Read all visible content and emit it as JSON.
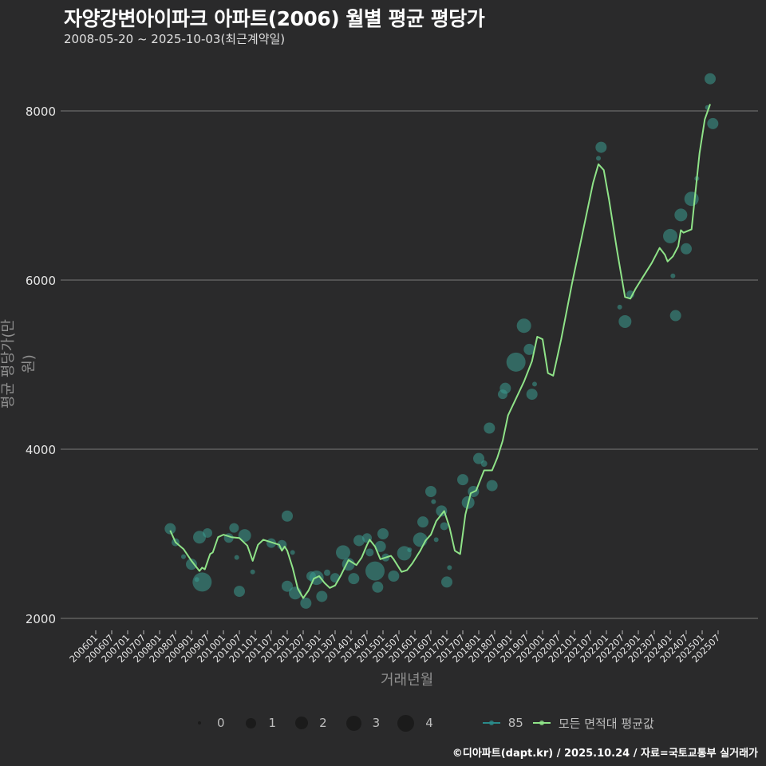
{
  "header": {
    "title": "자양강변아이파크 아파트(2006) 월별 평균 평당가",
    "subtitle": "2008-05-20 ~ 2025-10-03(최근계약일)"
  },
  "axes": {
    "ylabel": "평균 평당가(만 원)",
    "xlabel": "거래년월"
  },
  "legend": {
    "size_items": [
      {
        "label": "0",
        "size": 4
      },
      {
        "label": "1",
        "size": 12
      },
      {
        "label": "2",
        "size": 16
      },
      {
        "label": "3",
        "size": 20
      },
      {
        "label": "4",
        "size": 22
      }
    ],
    "series_items": [
      {
        "label": "85",
        "color": "#2a8a8a"
      },
      {
        "label": "모든 면적대 평균값",
        "color": "#8fe388"
      }
    ]
  },
  "footer": {
    "credit": "©디아파트(dapt.kr) / 2025.10.24 / 자료=국토교통부 실거래가"
  },
  "colors": {
    "background": "#2a2a2b",
    "grid": "#7a7a7a",
    "bubble": "#3a9a90",
    "line": "#8fe388"
  },
  "chart_data": {
    "type": "line",
    "title": "자양강변아이파크 아파트(2006) 월별 평균 평당가",
    "subtitle": "2008-05-20 ~ 2025-10-03(최근계약일)",
    "xlabel": "거래년월",
    "ylabel": "평균 평당가(만 원)",
    "ylim": [
      1900,
      8500
    ],
    "yticks": [
      2000,
      4000,
      6000,
      8000
    ],
    "grid": true,
    "legend_position": "bottom",
    "xticks": [
      "200601",
      "200607",
      "200701",
      "200707",
      "200801",
      "200807",
      "200901",
      "200907",
      "201001",
      "201007",
      "201101",
      "201107",
      "201201",
      "201207",
      "201301",
      "201307",
      "201401",
      "201407",
      "201501",
      "201507",
      "201601",
      "201607",
      "201701",
      "201707",
      "201801",
      "201807",
      "201901",
      "201907",
      "202001",
      "202007",
      "202101",
      "202107",
      "202201",
      "202207",
      "202301",
      "202307",
      "202401",
      "202407",
      "202501",
      "202507"
    ],
    "series": [
      {
        "name": "모든 면적대 평균값",
        "points": [
          [
            "200805",
            3040
          ],
          [
            "200807",
            2900
          ],
          [
            "200810",
            2820
          ],
          [
            "200901",
            2680
          ],
          [
            "200904",
            2560
          ],
          [
            "200905",
            2600
          ],
          [
            "200906",
            2580
          ],
          [
            "200908",
            2760
          ],
          [
            "200909",
            2780
          ],
          [
            "200911",
            2960
          ],
          [
            "201001",
            2990
          ],
          [
            "201004",
            2960
          ],
          [
            "201007",
            2950
          ],
          [
            "201010",
            2860
          ],
          [
            "201012",
            2680
          ],
          [
            "201102",
            2870
          ],
          [
            "201104",
            2930
          ],
          [
            "201107",
            2900
          ],
          [
            "201110",
            2870
          ],
          [
            "201111",
            2800
          ],
          [
            "201112",
            2850
          ],
          [
            "201201",
            2800
          ],
          [
            "201203",
            2600
          ],
          [
            "201205",
            2350
          ],
          [
            "201207",
            2240
          ],
          [
            "201209",
            2330
          ],
          [
            "201211",
            2470
          ],
          [
            "201301",
            2500
          ],
          [
            "201303",
            2420
          ],
          [
            "201305",
            2360
          ],
          [
            "201307",
            2390
          ],
          [
            "201309",
            2500
          ],
          [
            "201312",
            2690
          ],
          [
            "201403",
            2630
          ],
          [
            "201405",
            2720
          ],
          [
            "201407",
            2870
          ],
          [
            "201408",
            2930
          ],
          [
            "201410",
            2850
          ],
          [
            "201412",
            2700
          ],
          [
            "201502",
            2720
          ],
          [
            "201504",
            2740
          ],
          [
            "201505",
            2700
          ],
          [
            "201508",
            2550
          ],
          [
            "201510",
            2570
          ],
          [
            "201512",
            2650
          ],
          [
            "201603",
            2800
          ],
          [
            "201605",
            2920
          ],
          [
            "201607",
            2990
          ],
          [
            "201609",
            3150
          ],
          [
            "201612",
            3270
          ],
          [
            "201702",
            3080
          ],
          [
            "201704",
            2800
          ],
          [
            "201706",
            2760
          ],
          [
            "201708",
            3230
          ],
          [
            "201710",
            3480
          ],
          [
            "201712",
            3510
          ],
          [
            "201803",
            3750
          ],
          [
            "201806",
            3750
          ],
          [
            "201808",
            3900
          ],
          [
            "201810",
            4100
          ],
          [
            "201812",
            4400
          ],
          [
            "201903",
            4600
          ],
          [
            "201906",
            4800
          ],
          [
            "201909",
            5040
          ],
          [
            "201911",
            5330
          ],
          [
            "202001",
            5300
          ],
          [
            "202003",
            4900
          ],
          [
            "202005",
            4870
          ],
          [
            "202008",
            5300
          ],
          [
            "202012",
            5950
          ],
          [
            "202104",
            6550
          ],
          [
            "202108",
            7150
          ],
          [
            "202110",
            7370
          ],
          [
            "202112",
            7300
          ],
          [
            "202202",
            6950
          ],
          [
            "202205",
            6350
          ],
          [
            "202208",
            5800
          ],
          [
            "202210",
            5780
          ],
          [
            "202212",
            5900
          ],
          [
            "202303",
            6050
          ],
          [
            "202306",
            6200
          ],
          [
            "202309",
            6380
          ],
          [
            "202311",
            6300
          ],
          [
            "202312",
            6220
          ],
          [
            "202402",
            6280
          ],
          [
            "202404",
            6400
          ],
          [
            "202405",
            6590
          ],
          [
            "202406",
            6560
          ],
          [
            "202409",
            6600
          ],
          [
            "202410",
            6900
          ],
          [
            "202412",
            7500
          ],
          [
            "202502",
            7900
          ],
          [
            "202504",
            8080
          ]
        ]
      }
    ],
    "bubbles": {
      "name": "85",
      "points": [
        [
          "200805",
          3060,
          7
        ],
        [
          "200807",
          2900,
          5
        ],
        [
          "200810",
          2730,
          3
        ],
        [
          "200901",
          2640,
          7
        ],
        [
          "200903",
          2460,
          3
        ],
        [
          "200904",
          2960,
          8
        ],
        [
          "200905",
          2430,
          12
        ],
        [
          "200907",
          3010,
          6
        ],
        [
          "201003",
          2950,
          6
        ],
        [
          "201005",
          3070,
          6
        ],
        [
          "201006",
          2720,
          3
        ],
        [
          "201007",
          2320,
          7
        ],
        [
          "201009",
          2980,
          8
        ],
        [
          "201012",
          2550,
          3
        ],
        [
          "201107",
          2890,
          6
        ],
        [
          "201111",
          2870,
          6
        ],
        [
          "201201",
          3210,
          7
        ],
        [
          "201203",
          2780,
          3
        ],
        [
          "201201",
          2380,
          7
        ],
        [
          "201204",
          2300,
          8
        ],
        [
          "201208",
          2180,
          7
        ],
        [
          "201210",
          2500,
          6
        ],
        [
          "201212",
          2480,
          9
        ],
        [
          "201302",
          2260,
          7
        ],
        [
          "201304",
          2540,
          4
        ],
        [
          "201307",
          2480,
          6
        ],
        [
          "201310",
          2780,
          9
        ],
        [
          "201312",
          2640,
          8
        ],
        [
          "201402",
          2470,
          7
        ],
        [
          "201404",
          2920,
          7
        ],
        [
          "201407",
          2950,
          6
        ],
        [
          "201408",
          2780,
          5
        ],
        [
          "201410",
          2560,
          12
        ],
        [
          "201411",
          2370,
          7
        ],
        [
          "201412",
          2850,
          7
        ],
        [
          "201501",
          3000,
          7
        ],
        [
          "201502",
          2720,
          5
        ],
        [
          "201505",
          2500,
          7
        ],
        [
          "201509",
          2770,
          9
        ],
        [
          "201511",
          2810,
          3
        ],
        [
          "201603",
          2930,
          9
        ],
        [
          "201604",
          3140,
          7
        ],
        [
          "201607",
          3500,
          7
        ],
        [
          "201608",
          3380,
          3
        ],
        [
          "201609",
          2930,
          3
        ],
        [
          "201611",
          3270,
          7
        ],
        [
          "201612",
          3090,
          5
        ],
        [
          "201701",
          2430,
          7
        ],
        [
          "201702",
          2600,
          3
        ],
        [
          "201707",
          3640,
          7
        ],
        [
          "201709",
          3370,
          8
        ],
        [
          "201711",
          3500,
          7
        ],
        [
          "201801",
          3890,
          7
        ],
        [
          "201803",
          3830,
          4
        ],
        [
          "201805",
          4250,
          7
        ],
        [
          "201806",
          3570,
          7
        ],
        [
          "201810",
          4650,
          6
        ],
        [
          "201811",
          4720,
          7
        ],
        [
          "201903",
          5030,
          12
        ],
        [
          "201906",
          5460,
          9
        ],
        [
          "201908",
          5180,
          7
        ],
        [
          "201909",
          4650,
          7
        ],
        [
          "201910",
          4770,
          3
        ],
        [
          "202111",
          7570,
          7
        ],
        [
          "202110",
          7440,
          3
        ],
        [
          "202206",
          5680,
          3
        ],
        [
          "202208",
          5510,
          8
        ],
        [
          "202210",
          5830,
          5
        ],
        [
          "202401",
          6520,
          9
        ],
        [
          "202402",
          6050,
          3
        ],
        [
          "202403",
          5580,
          7
        ],
        [
          "202405",
          6770,
          8
        ],
        [
          "202407",
          6370,
          7
        ],
        [
          "202409",
          6960,
          9
        ],
        [
          "202411",
          7200,
          3
        ],
        [
          "202504",
          8380,
          7
        ],
        [
          "202505",
          7850,
          7
        ],
        [
          "202503",
          8040,
          3
        ]
      ]
    }
  }
}
